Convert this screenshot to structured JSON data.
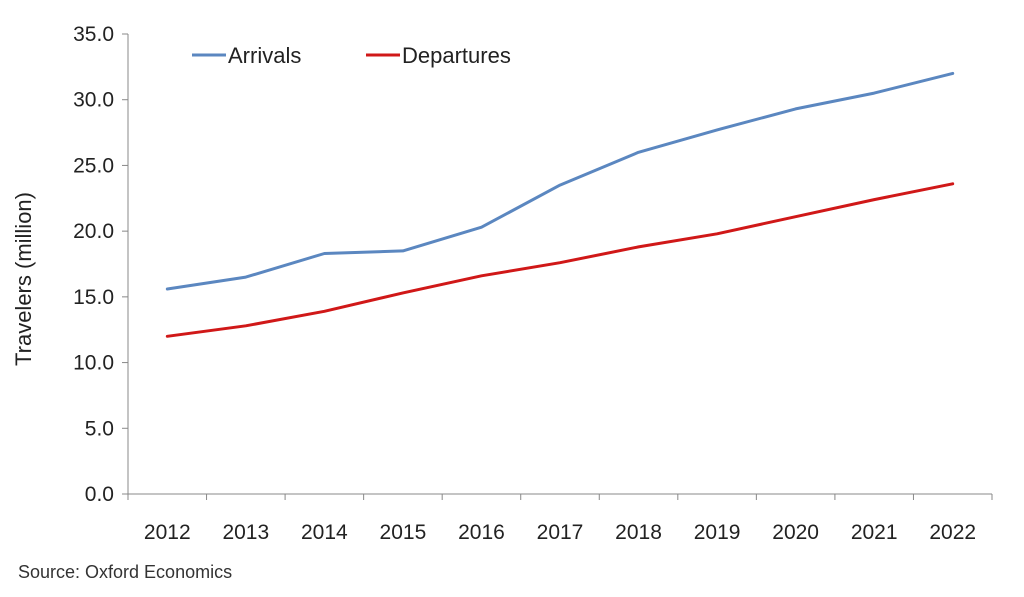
{
  "chart_data": {
    "type": "line",
    "x": [
      "2012",
      "2013",
      "2014",
      "2015",
      "2016",
      "2017",
      "2018",
      "2019",
      "2020",
      "2021",
      "2022"
    ],
    "series": [
      {
        "name": "Arrivals",
        "color": "#5b87c0",
        "values": [
          15.6,
          16.5,
          18.3,
          18.5,
          20.3,
          23.5,
          26.0,
          27.7,
          29.3,
          30.5,
          32.0
        ]
      },
      {
        "name": "Departures",
        "color": "#d01818",
        "values": [
          12.0,
          12.8,
          13.9,
          15.3,
          16.6,
          17.6,
          18.8,
          19.8,
          21.1,
          22.4,
          23.6
        ]
      }
    ],
    "ylabel": "Travelers (million)",
    "ylim": [
      0,
      35
    ],
    "yticks": [
      "0.0",
      "5.0",
      "10.0",
      "15.0",
      "20.0",
      "25.0",
      "30.0",
      "35.0"
    ],
    "grid": false,
    "legend_position": "top-left"
  },
  "source_text": "Source: Oxford Economics"
}
